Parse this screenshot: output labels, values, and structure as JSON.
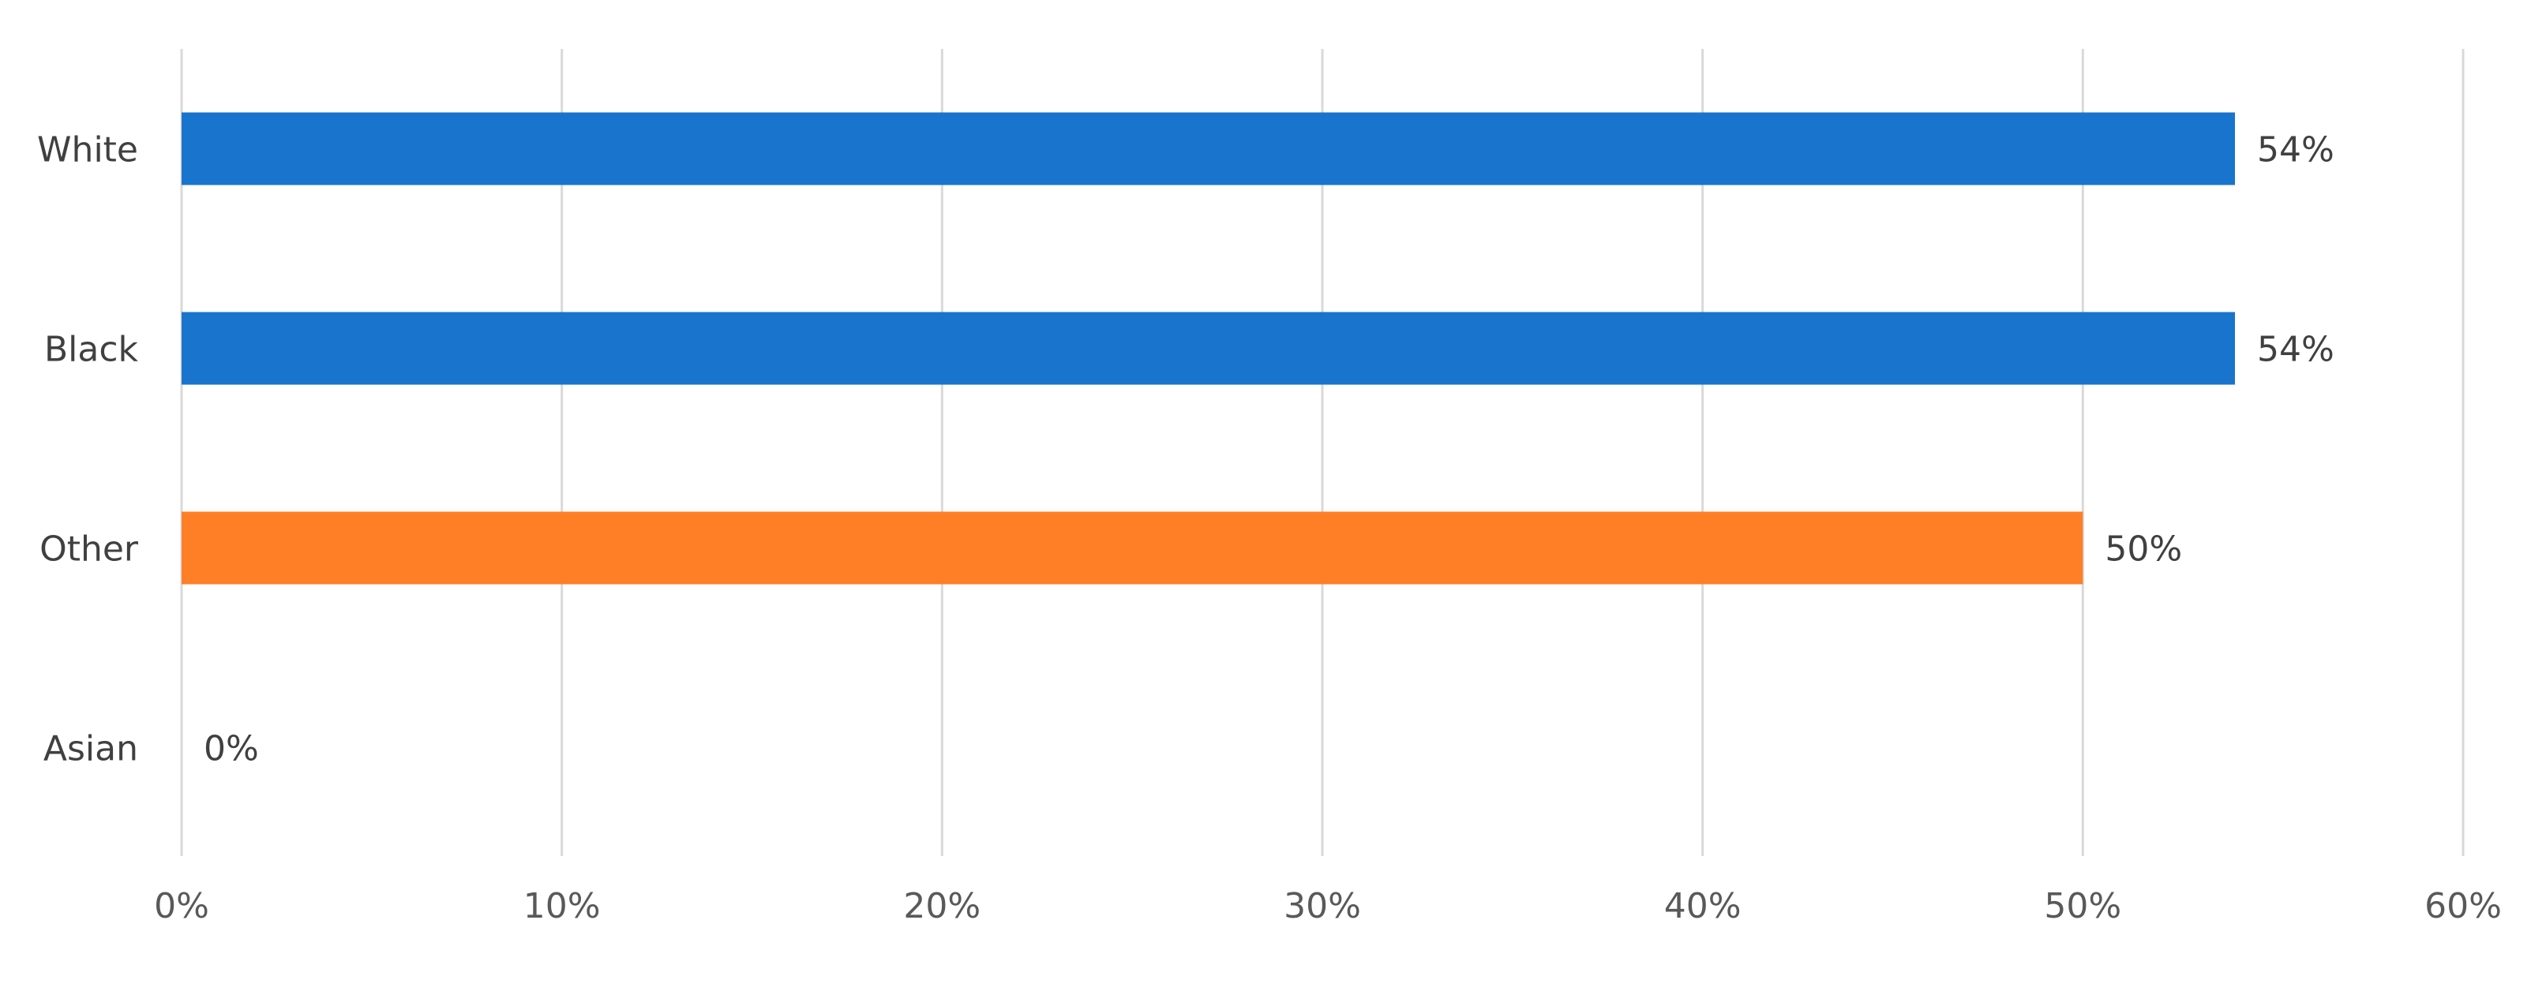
{
  "chart_data": {
    "type": "bar",
    "orientation": "horizontal",
    "categories": [
      "White",
      "Black",
      "Other",
      "Asian"
    ],
    "values": [
      54,
      54,
      50,
      0
    ],
    "data_labels": [
      "54%",
      "54%",
      "50%",
      "0%"
    ],
    "bar_colors": [
      "#1874CD",
      "#1874CD",
      "#FF7F27",
      "#1874CD"
    ],
    "xlim": [
      0,
      60
    ],
    "x_ticks": [
      0,
      10,
      20,
      30,
      40,
      50,
      60
    ],
    "x_tick_labels": [
      "0%",
      "10%",
      "20%",
      "30%",
      "40%",
      "50%",
      "60%"
    ],
    "grid": "vertical",
    "legend": "none",
    "title": "",
    "xlabel": "",
    "ylabel": ""
  }
}
